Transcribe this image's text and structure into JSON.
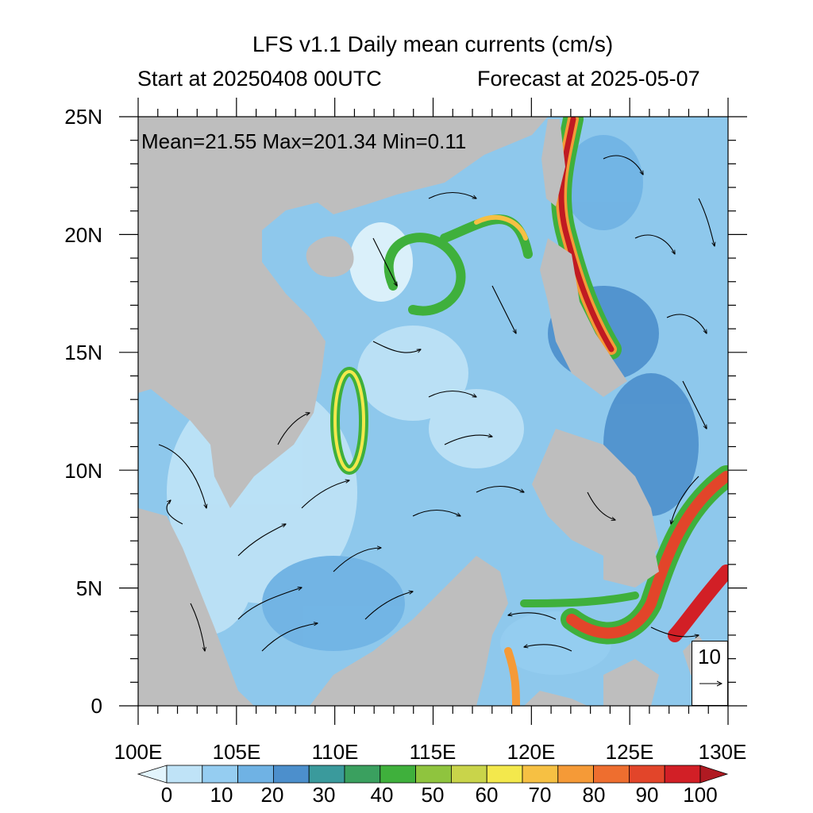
{
  "title": "LFS v1.1 Daily mean currents (cm/s)",
  "subtitle_left": "Start at 20250408 00UTC",
  "subtitle_right": "Forecast at 2025-05-07",
  "stats": "Mean=21.55  Max=201.34  Min=0.11",
  "map": {
    "lon_range": [
      100,
      130
    ],
    "lat_range": [
      0,
      25
    ],
    "x_ticks": [
      "100E",
      "105E",
      "110E",
      "115E",
      "120E",
      "125E",
      "130E"
    ],
    "y_ticks": [
      "0",
      "5N",
      "10N",
      "15N",
      "20N",
      "25N"
    ],
    "land_color": "#bebebe",
    "ocean_color": "#8ec8ec"
  },
  "reference_vector": {
    "value": "10",
    "icon": "arrow-right-icon"
  },
  "colorbar": {
    "labels": [
      "0",
      "10",
      "20",
      "30",
      "40",
      "50",
      "60",
      "70",
      "80",
      "90",
      "100"
    ],
    "colors": [
      "#e2f4fc",
      "#bfe3f7",
      "#95cdf1",
      "#6fb2e4",
      "#4c8fcc",
      "#3a9a9c",
      "#3aa05f",
      "#3fb03c",
      "#8fc43e",
      "#c9d44a",
      "#f3e84c",
      "#f6c043",
      "#f59a37",
      "#ee6e2f",
      "#e2452a",
      "#d21f26",
      "#b01a22"
    ]
  }
}
